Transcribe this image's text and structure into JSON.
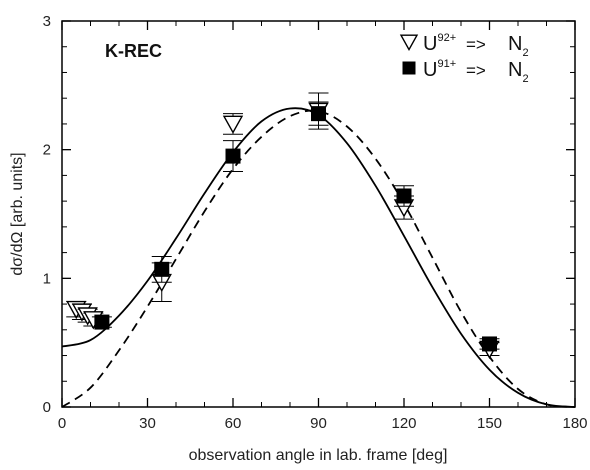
{
  "chart_data": {
    "type": "scatter",
    "annotation": "K-REC",
    "xlabel": "observation angle in lab. frame [deg]",
    "ylabel": "dσ/dΩ  [arb. units]",
    "xlim": [
      0,
      180
    ],
    "ylim": [
      0,
      3
    ],
    "xticks": [
      "0",
      "30",
      "60",
      "90",
      "120",
      "150",
      "180"
    ],
    "yticks": [
      "0",
      "1",
      "2",
      "3"
    ],
    "legend_position": "top-right",
    "series": [
      {
        "name": "U92+ => N2",
        "legend": {
          "base": "U",
          "sup": "92+",
          "arrow": "=>",
          "mol": "N",
          "sub": "2"
        },
        "marker": "open-triangle-down",
        "points": [
          {
            "x": 5,
            "y": 0.76,
            "err": 0.06
          },
          {
            "x": 7,
            "y": 0.74,
            "err": 0.06
          },
          {
            "x": 9,
            "y": 0.71,
            "err": 0.05
          },
          {
            "x": 11,
            "y": 0.68,
            "err": 0.05
          },
          {
            "x": 35,
            "y": 0.97,
            "err": 0.15
          },
          {
            "x": 60,
            "y": 2.2,
            "err": 0.08
          },
          {
            "x": 90,
            "y": 2.3,
            "err": 0.14
          },
          {
            "x": 120,
            "y": 1.55,
            "err": 0.09
          },
          {
            "x": 150,
            "y": 0.45,
            "err": 0.05
          }
        ]
      },
      {
        "name": "U91+ => N2",
        "legend": {
          "base": "U",
          "sup": "91+",
          "arrow": "=>",
          "mol": "N",
          "sub": "2"
        },
        "marker": "filled-square",
        "points": [
          {
            "x": 14,
            "y": 0.66,
            "err": 0.04
          },
          {
            "x": 35,
            "y": 1.07,
            "err": 0.1
          },
          {
            "x": 60,
            "y": 1.95,
            "err": 0.12
          },
          {
            "x": 90,
            "y": 2.28,
            "err": 0.09
          },
          {
            "x": 120,
            "y": 1.64,
            "err": 0.08
          },
          {
            "x": 150,
            "y": 0.49,
            "err": 0.04
          }
        ]
      }
    ],
    "curves": [
      {
        "style": "solid",
        "points": [
          [
            0,
            0.47
          ],
          [
            10,
            0.52
          ],
          [
            20,
            0.71
          ],
          [
            30,
            0.98
          ],
          [
            40,
            1.31
          ],
          [
            50,
            1.66
          ],
          [
            60,
            1.98
          ],
          [
            70,
            2.22
          ],
          [
            80,
            2.32
          ],
          [
            90,
            2.27
          ],
          [
            100,
            2.05
          ],
          [
            110,
            1.72
          ],
          [
            120,
            1.33
          ],
          [
            130,
            0.93
          ],
          [
            140,
            0.57
          ],
          [
            150,
            0.29
          ],
          [
            160,
            0.11
          ],
          [
            170,
            0.02
          ],
          [
            180,
            0.0
          ]
        ]
      },
      {
        "style": "dashed",
        "points": [
          [
            0,
            0.0
          ],
          [
            10,
            0.15
          ],
          [
            20,
            0.44
          ],
          [
            30,
            0.78
          ],
          [
            40,
            1.15
          ],
          [
            50,
            1.52
          ],
          [
            60,
            1.85
          ],
          [
            70,
            2.1
          ],
          [
            80,
            2.26
          ],
          [
            90,
            2.3
          ],
          [
            100,
            2.18
          ],
          [
            110,
            1.93
          ],
          [
            120,
            1.58
          ],
          [
            130,
            1.16
          ],
          [
            140,
            0.74
          ],
          [
            150,
            0.39
          ],
          [
            160,
            0.14
          ],
          [
            170,
            0.02
          ],
          [
            180,
            0.0
          ]
        ]
      }
    ]
  }
}
